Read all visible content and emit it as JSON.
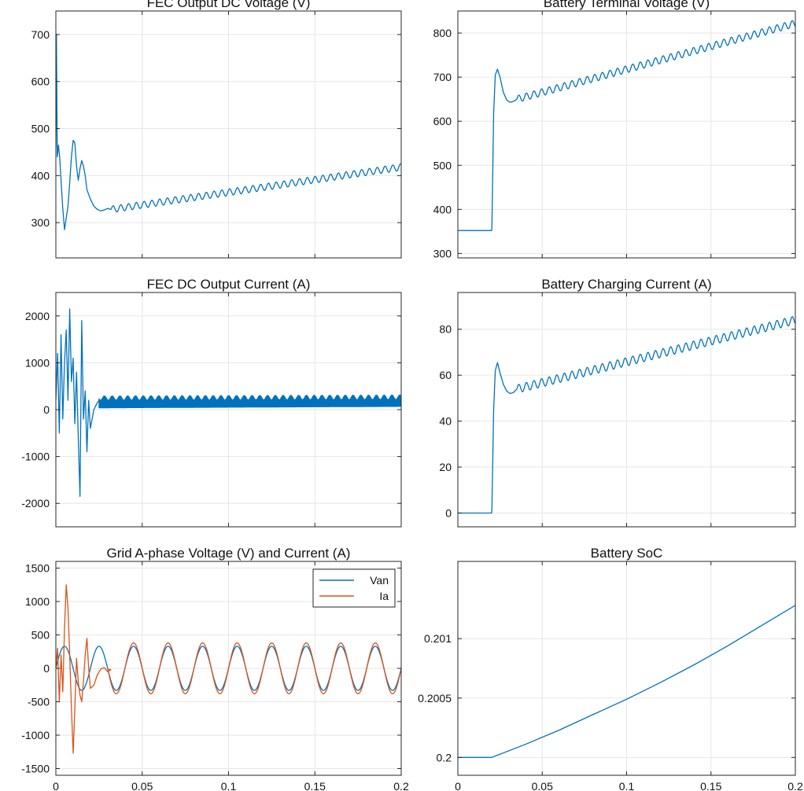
{
  "chart_data": [
    {
      "type": "line",
      "title": "FEC Output DC Voltage (V)",
      "xlim": [
        0,
        0.2
      ],
      "ylim": [
        225,
        750
      ],
      "xticks": [
        0,
        0.05,
        0.1,
        0.15,
        0.2
      ],
      "yticks": [
        300,
        400,
        500,
        600,
        700
      ],
      "ytick_labels": [
        "300",
        "400",
        "500",
        "600",
        "700"
      ],
      "grid": true,
      "series": [
        {
          "color": "#0072BD",
          "x": [
            0,
            0.0003,
            0.0008,
            0.0015,
            0.0022,
            0.003,
            0.004,
            0.005,
            0.006,
            0.007,
            0.008,
            0.009,
            0.01,
            0.011,
            0.012,
            0.013,
            0.014,
            0.015,
            0.016,
            0.017,
            0.018,
            0.02,
            0.022,
            0.024,
            0.026,
            0.028,
            0.03,
            0.032
          ],
          "y": [
            460,
            700,
            440,
            465,
            440,
            390,
            330,
            285,
            310,
            335,
            385,
            440,
            475,
            470,
            420,
            390,
            415,
            432,
            420,
            400,
            370,
            350,
            335,
            328,
            325,
            327,
            330,
            328
          ],
          "ripple": {
            "start": 0.032,
            "end": 0.2,
            "y_start": 328,
            "y_end": 418,
            "amplitude": 7,
            "period": 0.0045
          }
        }
      ]
    },
    {
      "type": "line",
      "title": "FEC DC Output Current (A)",
      "xlim": [
        0,
        0.2
      ],
      "ylim": [
        -2500,
        2500
      ],
      "xticks": [
        0,
        0.05,
        0.1,
        0.15,
        0.2
      ],
      "yticks": [
        -2000,
        -1000,
        0,
        1000,
        2000
      ],
      "ytick_labels": [
        "-2000",
        "-1000",
        "0",
        "1000",
        "2000"
      ],
      "grid": true,
      "series": [
        {
          "color": "#0072BD",
          "x": [
            0,
            0.001,
            0.002,
            0.003,
            0.004,
            0.005,
            0.006,
            0.007,
            0.008,
            0.009,
            0.01,
            0.011,
            0.012,
            0.013,
            0.014,
            0.015,
            0.016,
            0.017,
            0.018,
            0.019,
            0.02,
            0.022,
            0.024,
            0.025
          ],
          "y": [
            200,
            1200,
            -500,
            1600,
            -200,
            1000,
            1700,
            200,
            2150,
            600,
            1100,
            -300,
            800,
            -600,
            -1850,
            1900,
            -200,
            400,
            -900,
            200,
            -400,
            0,
            150,
            200
          ],
          "band": {
            "start": 0.025,
            "end": 0.2,
            "low_start": 30,
            "low_end": 60,
            "high_start": 300,
            "high_end": 320
          }
        }
      ]
    },
    {
      "type": "line",
      "title": "Grid A-phase Voltage (V) and Current (A)",
      "xlim": [
        0,
        0.2
      ],
      "ylim": [
        -1600,
        1600
      ],
      "xticks": [
        0,
        0.05,
        0.1,
        0.15,
        0.2
      ],
      "xtick_labels": [
        "0",
        "0.05",
        "0.1",
        "0.15",
        "0.2"
      ],
      "yticks": [
        -1500,
        -1000,
        -500,
        0,
        500,
        1000,
        1500
      ],
      "ytick_labels": [
        "-1500",
        "-1000",
        "-500",
        "0",
        "500",
        "1000",
        "1500"
      ],
      "grid": true,
      "legend": {
        "position": "top-right",
        "entries": [
          "Van",
          "Ia"
        ]
      },
      "series": [
        {
          "name": "Van",
          "color": "#0072BD",
          "sine": {
            "amplitude": 330,
            "frequency": 50,
            "phase": 0,
            "start": 0,
            "end": 0.2
          }
        },
        {
          "name": "Ia",
          "color": "#D95319",
          "x": [
            0,
            0.001,
            0.002,
            0.003,
            0.004,
            0.005,
            0.006,
            0.007,
            0.008,
            0.009,
            0.01,
            0.011,
            0.012,
            0.013,
            0.014,
            0.015,
            0.016,
            0.017,
            0.018,
            0.019,
            0.02,
            0.022,
            0.024,
            0.026,
            0.028,
            0.03,
            0.032
          ],
          "y": [
            0,
            300,
            -500,
            200,
            -350,
            600,
            1250,
            900,
            200,
            -600,
            -1270,
            -600,
            150,
            -200,
            -400,
            -500,
            -200,
            200,
            450,
            0,
            -300,
            -250,
            -100,
            -10,
            10,
            -50,
            -20
          ],
          "ripple": {
            "start": 0.03,
            "end": 0.2,
            "amplitude": 380,
            "frequency": 50,
            "phase": 0
          }
        }
      ]
    },
    {
      "type": "line",
      "title": "Battery Terminal Voltage (V)",
      "xlim": [
        0,
        0.2
      ],
      "ylim": [
        290,
        850
      ],
      "xticks": [
        0,
        0.05,
        0.1,
        0.15,
        0.2
      ],
      "yticks": [
        300,
        400,
        500,
        600,
        700,
        800
      ],
      "ytick_labels": [
        "300",
        "400",
        "500",
        "600",
        "700",
        "800"
      ],
      "grid": true,
      "series": [
        {
          "color": "#0072BD",
          "x": [
            0,
            0.02,
            0.0202,
            0.0212,
            0.0222,
            0.0235,
            0.025,
            0.027,
            0.029,
            0.031,
            0.033,
            0.035
          ],
          "y": [
            352,
            352,
            360,
            620,
            705,
            718,
            700,
            665,
            648,
            643,
            645,
            650
          ],
          "ripple": {
            "start": 0.035,
            "end": 0.2,
            "y_start": 650,
            "y_end": 822,
            "amplitude": 8,
            "period": 0.0045
          }
        }
      ]
    },
    {
      "type": "line",
      "title": "Battery Charging Current (A)",
      "xlim": [
        0,
        0.2
      ],
      "ylim": [
        -6,
        96
      ],
      "xticks": [
        0,
        0.05,
        0.1,
        0.15,
        0.2
      ],
      "yticks": [
        0,
        20,
        40,
        60,
        80
      ],
      "ytick_labels": [
        "0",
        "20",
        "40",
        "60",
        "80"
      ],
      "grid": true,
      "series": [
        {
          "color": "#0072BD",
          "x": [
            0,
            0.02,
            0.0202,
            0.0212,
            0.0222,
            0.0235,
            0.025,
            0.027,
            0.029,
            0.031,
            0.033,
            0.035
          ],
          "y": [
            0,
            0,
            2,
            45,
            62,
            65.5,
            61,
            56,
            53,
            52,
            52.5,
            54
          ],
          "ripple": {
            "start": 0.035,
            "end": 0.2,
            "y_start": 54,
            "y_end": 84,
            "amplitude": 1.8,
            "period": 0.0045
          }
        }
      ]
    },
    {
      "type": "line",
      "title": "Battery SoC",
      "xlim": [
        0,
        0.2
      ],
      "ylim": [
        0.19985,
        0.20165
      ],
      "xticks": [
        0,
        0.05,
        0.1,
        0.15,
        0.2
      ],
      "xtick_labels": [
        "0",
        "0.05",
        "0.1",
        "0.15",
        "0.2"
      ],
      "yticks": [
        0.2,
        0.2005,
        0.201
      ],
      "ytick_labels": [
        "0.2",
        "0.2005",
        "0.201"
      ],
      "grid": true,
      "series": [
        {
          "color": "#0072BD",
          "x": [
            0,
            0.02,
            0.04,
            0.06,
            0.08,
            0.1,
            0.12,
            0.14,
            0.16,
            0.18,
            0.2
          ],
          "y": [
            0.2,
            0.2,
            0.20011,
            0.20023,
            0.20036,
            0.20049,
            0.20063,
            0.20078,
            0.20094,
            0.20111,
            0.20128
          ]
        }
      ]
    }
  ]
}
